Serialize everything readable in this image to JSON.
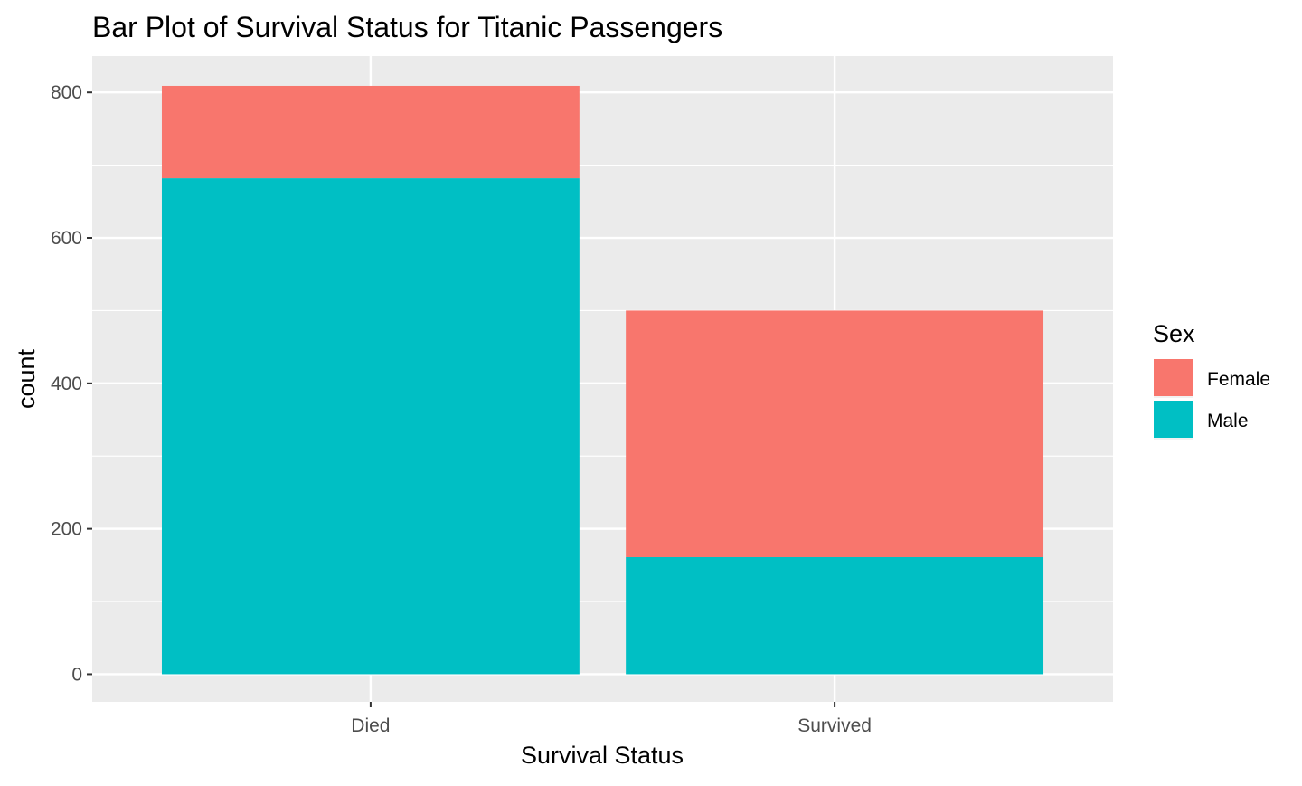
{
  "chart_data": {
    "type": "bar",
    "stacked": true,
    "title": "Bar Plot of Survival Status for Titanic Passengers",
    "xlabel": "Survival Status",
    "ylabel": "count",
    "categories": [
      "Died",
      "Survived"
    ],
    "series": [
      {
        "name": "Female",
        "values": [
          127,
          339
        ],
        "color": "#F8766D"
      },
      {
        "name": "Male",
        "values": [
          682,
          161
        ],
        "color": "#00BFC4"
      }
    ],
    "stack_order": [
      "Male",
      "Female"
    ],
    "ylim": [
      -38,
      850
    ],
    "yticks": [
      0,
      200,
      400,
      600,
      800
    ],
    "ytick_labels": [
      "0",
      "200",
      "400",
      "600",
      "800"
    ],
    "grid": true,
    "panel_background": "#EBEBEB",
    "legend": {
      "title": "Sex",
      "position": "right",
      "entries": [
        "Female",
        "Male"
      ]
    }
  }
}
